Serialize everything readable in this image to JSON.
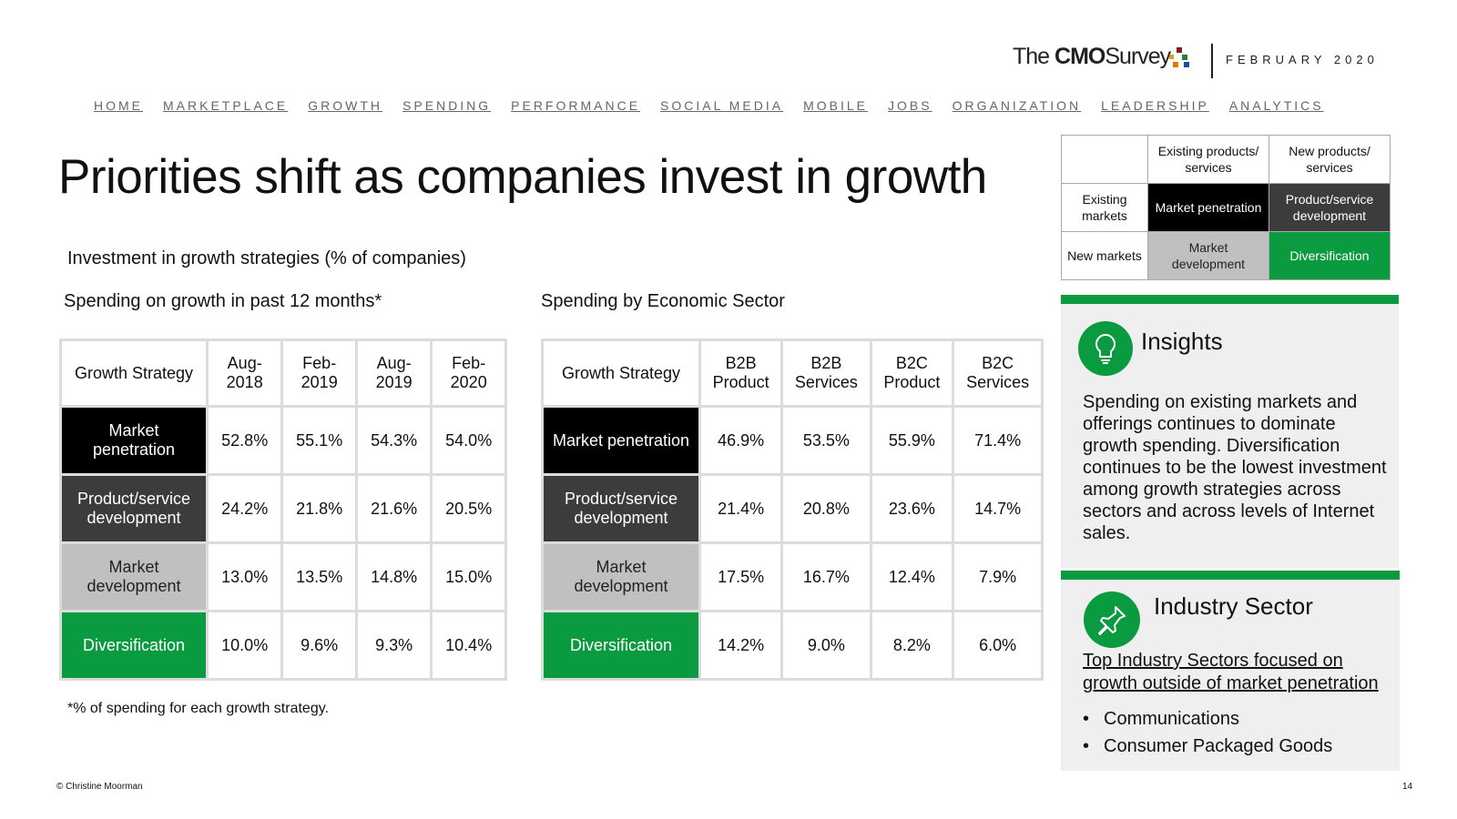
{
  "header": {
    "logo": {
      "the": "The",
      "cmo": "CMO",
      "survey": "Survey"
    },
    "date": "FEBRUARY 2020"
  },
  "nav": [
    "HOME",
    "MARKETPLACE",
    "GROWTH",
    "SPENDING",
    "PERFORMANCE",
    "SOCIAL MEDIA",
    "MOBILE",
    "JOBS",
    "ORGANIZATION",
    "LEADERSHIP",
    "ANALYTICS"
  ],
  "title": "Priorities shift as companies invest in growth",
  "subtitle": "Investment in growth strategies (% of companies)",
  "table1": {
    "caption": "Spending on growth in past 12 months*",
    "header": [
      "Growth Strategy",
      "Aug-2018",
      "Feb-2019",
      "Aug-2019",
      "Feb-2020"
    ],
    "rows": [
      [
        "Market penetration",
        "52.8%",
        "55.1%",
        "54.3%",
        "54.0%"
      ],
      [
        "Product/service development",
        "24.2%",
        "21.8%",
        "21.6%",
        "20.5%"
      ],
      [
        "Market development",
        "13.0%",
        "13.5%",
        "14.8%",
        "15.0%"
      ],
      [
        "Diversification",
        "10.0%",
        "9.6%",
        "9.3%",
        "10.4%"
      ]
    ],
    "footnote": "*% of spending for each growth strategy."
  },
  "table2": {
    "caption": "Spending by Economic Sector",
    "header": [
      "Growth Strategy",
      "B2B Product",
      "B2B Services",
      "B2C Product",
      "B2C Services"
    ],
    "rows": [
      [
        "Market penetration",
        "46.9%",
        "53.5%",
        "55.9%",
        "71.4%"
      ],
      [
        "Product/service development",
        "21.4%",
        "20.8%",
        "23.6%",
        "14.7%"
      ],
      [
        "Market development",
        "17.5%",
        "16.7%",
        "12.4%",
        "7.9%"
      ],
      [
        "Diversification",
        "14.2%",
        "9.0%",
        "8.2%",
        "6.0%"
      ]
    ]
  },
  "matrix": {
    "header": [
      "Existing products/ services",
      "New products/ services"
    ],
    "rows": [
      [
        "Existing markets",
        "Market penetration",
        "Product/service development"
      ],
      [
        "New markets",
        "Market development",
        "Diversification"
      ]
    ]
  },
  "insights": {
    "title": "Insights",
    "text": "Spending on existing markets and offerings continues to dominate growth spending. Diversification continues to be the lowest investment among growth strategies across sectors and across levels of Internet sales."
  },
  "industry": {
    "title": "Industry Sector",
    "link": "Top Industry Sectors focused on growth outside of market penetration",
    "items": [
      "Communications",
      "Consumer Packaged Goods"
    ]
  },
  "footer": {
    "copyright": "© Christine Moorman",
    "page": "14"
  }
}
